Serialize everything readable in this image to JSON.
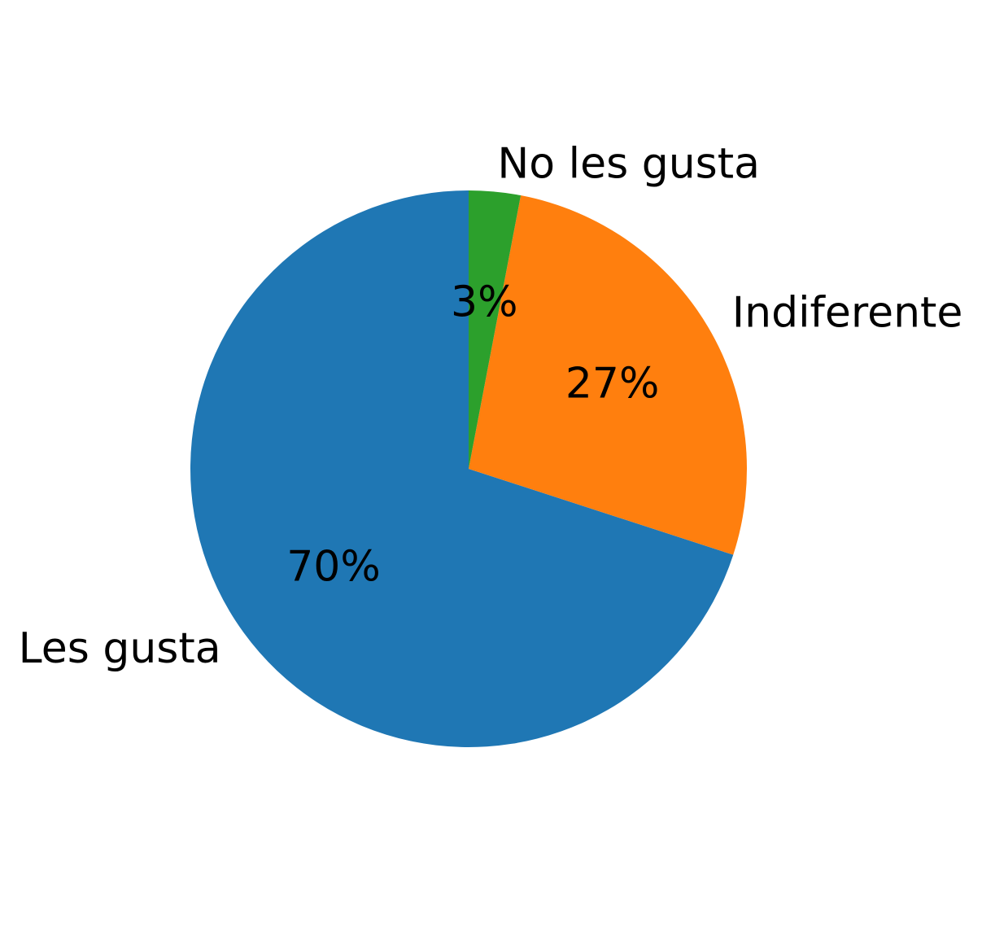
{
  "chart_data": {
    "type": "pie",
    "slices": [
      {
        "label": "Les gusta",
        "value": 70,
        "pct_label": "70%",
        "color": "#1f77b4"
      },
      {
        "label": "Indiferente",
        "value": 27,
        "pct_label": "27%",
        "color": "#ff7f0e"
      },
      {
        "label": "No les gusta",
        "value": 3,
        "pct_label": "3%",
        "color": "#2ca02c"
      }
    ],
    "start_angle": "top",
    "direction": "counterclockwise"
  }
}
